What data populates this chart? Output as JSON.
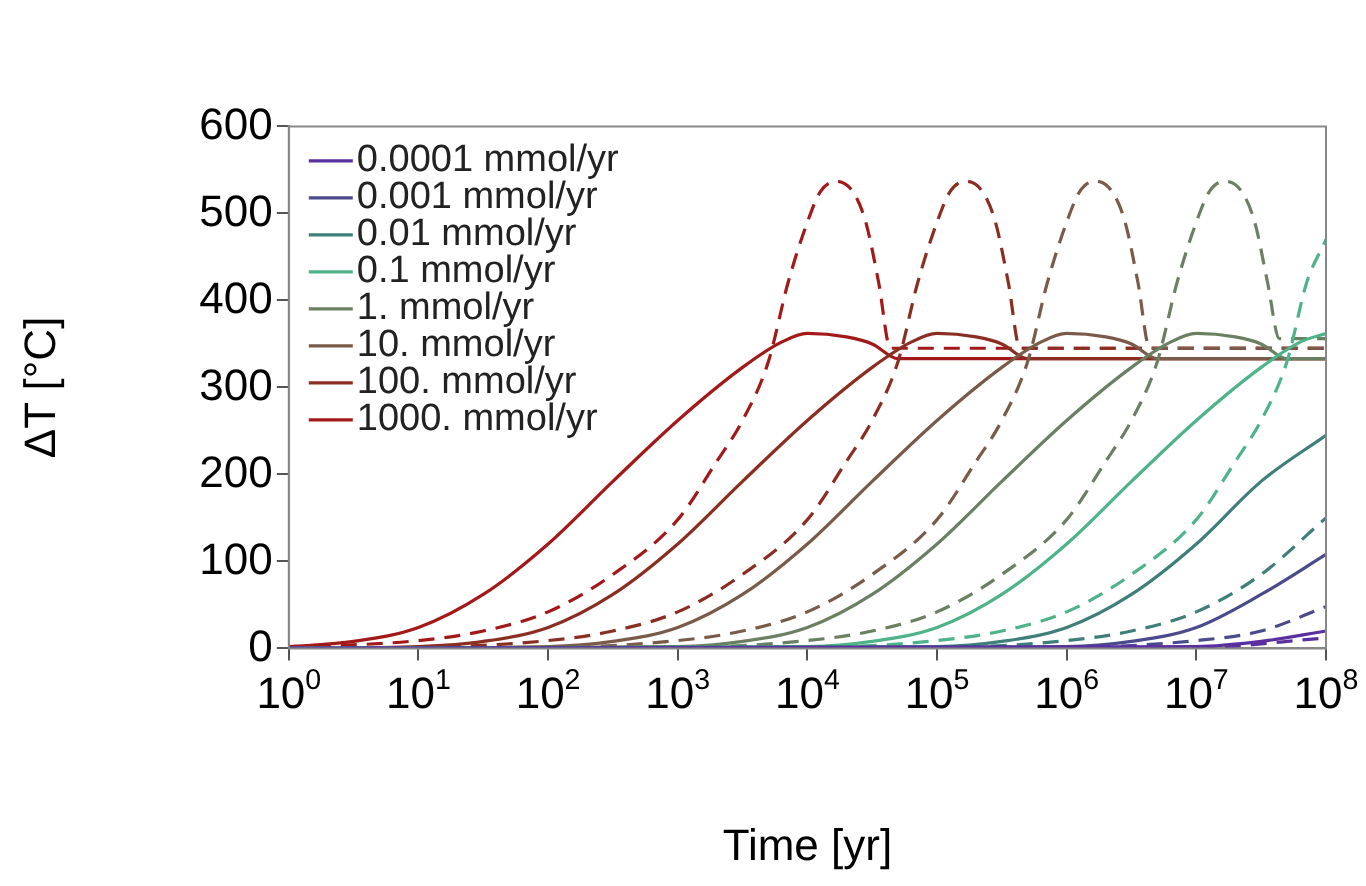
{
  "chart_data": {
    "type": "line",
    "xlabel": "Time [yr]",
    "ylabel": "ΔT [°C]",
    "log": "x",
    "xlim": [
      1,
      100000000
    ],
    "ylim": [
      0,
      600
    ],
    "xticks": [
      {
        "value": 1,
        "label": "10$^{0}$"
      },
      {
        "value": 10,
        "label": "10$^{1}$"
      },
      {
        "value": 100,
        "label": "10$^{2}$"
      },
      {
        "value": 1000,
        "label": "10$^{3}$"
      },
      {
        "value": 10000,
        "label": "10$^{4}$"
      },
      {
        "value": 100000,
        "label": "10$^{5}$"
      },
      {
        "value": 1000000,
        "label": "10$^{6}$"
      },
      {
        "value": 10000000,
        "label": "10$^{7}$"
      },
      {
        "value": 100000000,
        "label": "10$^{8}$"
      }
    ],
    "yticks": [
      0,
      100,
      200,
      300,
      400,
      500,
      600
    ],
    "grid": false,
    "legend": "top left",
    "marker": "none",
    "series": [
      {
        "color": "#5a2f9e",
        "line_style": "dashed",
        "x": [
          1,
          10000000,
          100000000
        ],
        "values": [
          0,
          1,
          12
        ]
      },
      {
        "name": "0.0001 mmol/yr",
        "color": "#5a2f9e",
        "line_style": "solid",
        "x": [
          1,
          10000000,
          31600000,
          100000000
        ],
        "values": [
          0,
          2,
          8,
          20
        ]
      },
      {
        "color": "#4a4a8c",
        "line_style": "dashed",
        "x": [
          1,
          1000000,
          10000000,
          31600000,
          100000000
        ],
        "values": [
          0,
          1,
          9,
          20,
          48
        ]
      },
      {
        "name": "0.001 mmol/yr",
        "color": "#4a4a8c",
        "line_style": "solid",
        "x": [
          1,
          1000000,
          3160000,
          10000000,
          31600000,
          100000000
        ],
        "values": [
          0,
          2,
          8,
          24,
          62,
          108
        ]
      },
      {
        "color": "#3e7f7a",
        "line_style": "dashed",
        "x": [
          1,
          100000,
          1000000,
          3160000,
          10000000,
          31600000,
          100000000
        ],
        "values": [
          0,
          1,
          9,
          20,
          42,
          85,
          150
        ]
      },
      {
        "name": "0.01 mmol/yr",
        "color": "#3e7f7a",
        "line_style": "solid",
        "x": [
          1,
          100000,
          316000,
          1000000,
          3160000,
          10000000,
          31600000,
          100000000
        ],
        "values": [
          0,
          2,
          8,
          24,
          62,
          120,
          192,
          245
        ]
      },
      {
        "color": "#4fb38a",
        "line_style": "dashed",
        "x": [
          1,
          10000,
          100000,
          316000,
          1000000,
          3160000,
          10000000,
          20000000,
          31600000,
          50100000,
          70800000,
          100000000
        ],
        "values": [
          0,
          1,
          9,
          20,
          42,
          85,
          148,
          215,
          262,
          330,
          420,
          470
        ]
      },
      {
        "name": "0.1 mmol/yr",
        "color": "#4fb38a",
        "line_style": "solid",
        "x": [
          1,
          10000,
          31600,
          100000,
          316000,
          1000000,
          3160000,
          10000000,
          31600000,
          63100000,
          100000000
        ],
        "values": [
          0,
          2,
          8,
          24,
          62,
          120,
          192,
          262,
          323,
          352,
          362
        ]
      },
      {
        "color": "#6b7f62",
        "line_style": "dashed",
        "x": [
          1,
          1000,
          10000,
          31600,
          100000,
          316000,
          1000000,
          2000000,
          3160000,
          5010000,
          7080000,
          10000000,
          12600000,
          16600000,
          22400000,
          28200000,
          35500000,
          43700000,
          100000000
        ],
        "values": [
          0,
          1,
          9,
          20,
          42,
          85,
          148,
          215,
          262,
          330,
          420,
          490,
          525,
          537,
          525,
          490,
          420,
          356,
          356
        ]
      },
      {
        "name": "1. mmol/yr",
        "color": "#6b7f62",
        "line_style": "solid",
        "x": [
          1,
          1000,
          3160,
          10000,
          31600,
          100000,
          316000,
          1000000,
          3160000,
          6310000,
          10000000,
          20000000,
          31600000,
          50100000,
          100000000
        ],
        "values": [
          0,
          2,
          8,
          24,
          62,
          120,
          192,
          262,
          323,
          352,
          362,
          358,
          350,
          333,
          333
        ]
      },
      {
        "color": "#7a5a48",
        "line_style": "dashed",
        "x": [
          1,
          100,
          1000,
          3160,
          10000,
          31600,
          100000,
          200000,
          316000,
          501000,
          708000,
          1000000,
          1260000,
          1660000,
          2240000,
          2820000,
          3550000,
          4370000,
          100000000
        ],
        "values": [
          0,
          1,
          9,
          20,
          42,
          85,
          148,
          215,
          262,
          330,
          420,
          490,
          525,
          537,
          525,
          490,
          420,
          345,
          345
        ]
      },
      {
        "name": "10. mmol/yr",
        "color": "#7a5a48",
        "line_style": "solid",
        "x": [
          1,
          100,
          316,
          1000,
          3160,
          10000,
          31600,
          100000,
          316000,
          631000,
          1000000,
          2000000,
          3160000,
          5010000,
          100000000
        ],
        "values": [
          0,
          2,
          8,
          24,
          62,
          120,
          192,
          262,
          323,
          352,
          362,
          358,
          350,
          333,
          333
        ]
      },
      {
        "color": "#8b2e22",
        "line_style": "dashed",
        "x": [
          1,
          10,
          100,
          316,
          1000,
          3160,
          10000,
          20000,
          31600,
          50100,
          70800,
          100000,
          126000,
          166000,
          224000,
          282000,
          355000,
          437000,
          100000000
        ],
        "values": [
          0,
          1,
          9,
          20,
          42,
          85,
          148,
          215,
          262,
          330,
          420,
          490,
          525,
          537,
          525,
          490,
          420,
          345,
          345
        ]
      },
      {
        "name": "100. mmol/yr",
        "color": "#8b2e22",
        "line_style": "solid",
        "x": [
          1,
          10,
          31.6,
          100,
          316,
          1000,
          3160,
          10000,
          31600,
          63100,
          100000,
          200000,
          316000,
          501000,
          100000000
        ],
        "values": [
          0,
          2,
          8,
          24,
          62,
          120,
          192,
          262,
          323,
          352,
          362,
          358,
          350,
          333,
          333
        ]
      },
      {
        "color": "#a31818",
        "line_style": "dashed",
        "x": [
          1,
          10,
          31.6,
          100,
          316,
          1000,
          2000,
          3160,
          5010,
          7080,
          10000,
          12600,
          16600,
          22400,
          28200,
          35500,
          43700,
          100000000
        ],
        "values": [
          1,
          9,
          20,
          42,
          85,
          148,
          215,
          262,
          330,
          420,
          490,
          525,
          537,
          525,
          490,
          420,
          345,
          345
        ]
      },
      {
        "name": "1000. mmol/yr",
        "color": "#a31818",
        "line_style": "solid",
        "x": [
          1,
          3.16,
          10,
          31.6,
          100,
          316,
          1000,
          3160,
          6310,
          10000,
          20000,
          31600,
          50100,
          100000000
        ],
        "values": [
          2,
          8,
          24,
          62,
          120,
          192,
          262,
          323,
          352,
          362,
          358,
          350,
          333,
          333
        ]
      }
    ]
  }
}
